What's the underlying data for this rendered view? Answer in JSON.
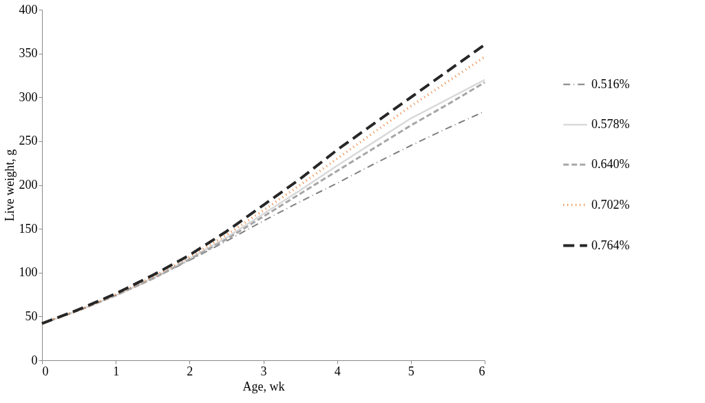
{
  "chart_data": {
    "type": "line",
    "xlabel": "Age, wk",
    "ylabel": "Live weight, g",
    "x": [
      0,
      0.5,
      1,
      1.5,
      2,
      2.5,
      3,
      3.5,
      4,
      4.5,
      5,
      5.5,
      6
    ],
    "xlim": [
      0,
      6
    ],
    "xticks": [
      0,
      1,
      2,
      3,
      4,
      5,
      6
    ],
    "ylim": [
      0,
      400
    ],
    "yticks": [
      0,
      50,
      100,
      150,
      200,
      250,
      300,
      350,
      400
    ],
    "grid": false,
    "legend": "right",
    "marker": "none",
    "series": [
      {
        "name": "0.516%",
        "color": "#7f7f7f",
        "line_style": "dashdot",
        "values": [
          42,
          57,
          74,
          93,
          114,
          136,
          159,
          181,
          202,
          224,
          245,
          265,
          284
        ]
      },
      {
        "name": "0.578%",
        "color": "#d9d9d9",
        "line_style": "solid",
        "values": [
          42,
          57,
          74,
          94,
          116,
          140,
          167,
          194,
          222,
          249,
          276,
          298,
          320
        ]
      },
      {
        "name": "0.640%",
        "color": "#a6a6a6",
        "line_style": "dashed",
        "values": [
          42,
          57,
          74,
          93,
          115,
          138,
          164,
          190,
          216,
          242,
          268,
          292,
          317
        ]
      },
      {
        "name": "0.702%",
        "color": "#ed7d31",
        "line_style": "dotted",
        "values": [
          42,
          57,
          75,
          95,
          118,
          143,
          171,
          200,
          230,
          260,
          290,
          318,
          346
        ]
      },
      {
        "name": "0.764%",
        "color": "#262626",
        "line_style": "longdash",
        "values": [
          42,
          58,
          76,
          97,
          120,
          147,
          177,
          207,
          240,
          270,
          300,
          330,
          360
        ]
      }
    ]
  }
}
